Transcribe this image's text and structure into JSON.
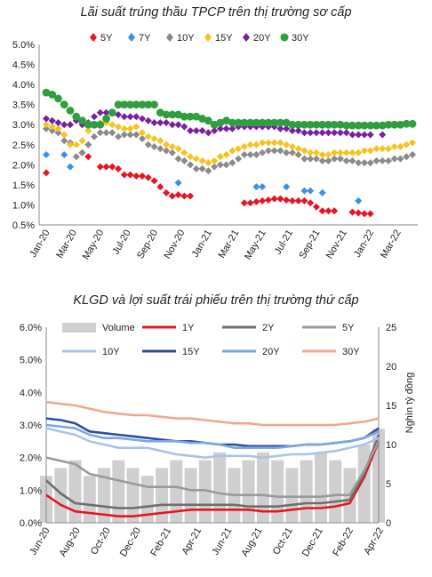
{
  "chart_data": [
    {
      "type": "scatter",
      "title": "Lãi suất trúng thầu TPCP trên thị trường sơ cấp",
      "xlabel": "",
      "ylabel": "",
      "ylim": [
        0.5,
        5.0
      ],
      "yticks": [
        "0.5%",
        "1.0%",
        "1.5%",
        "2.0%",
        "2.5%",
        "3.0%",
        "3.5%",
        "4.0%",
        "4.5%",
        "5.0%"
      ],
      "x_ticks": [
        "Jan-20",
        "Mar-20",
        "May-20",
        "Jul-20",
        "Sep-20",
        "Nov-20",
        "Jan-21",
        "Mar-21",
        "May-21",
        "Jul-21",
        "Sep-21",
        "Nov-21",
        "Jan-22",
        "Mar-22"
      ],
      "legend_position": "top",
      "grid": false,
      "series": [
        {
          "name": "5Y",
          "color": "#e8141f",
          "marker": "diamond",
          "x": [
            0,
            6,
            7,
            9,
            10,
            11,
            12,
            13,
            14,
            15,
            16,
            17,
            18,
            19,
            20,
            21,
            22,
            23,
            24,
            33,
            34,
            35,
            36,
            37,
            38,
            39,
            40,
            41,
            42,
            43,
            44,
            45,
            46,
            47,
            48,
            51,
            52,
            53,
            54
          ],
          "y": [
            1.8,
            2.3,
            2.2,
            1.95,
            1.95,
            1.95,
            1.9,
            1.75,
            1.75,
            1.72,
            1.72,
            1.68,
            1.6,
            1.45,
            1.3,
            1.22,
            1.25,
            1.22,
            1.22,
            1.05,
            1.05,
            1.08,
            1.1,
            1.12,
            1.15,
            1.15,
            1.12,
            1.1,
            1.1,
            1.1,
            1.05,
            0.95,
            0.85,
            0.85,
            0.85,
            0.82,
            0.8,
            0.78,
            0.78
          ]
        },
        {
          "name": "7Y",
          "color": "#3c8ee8",
          "marker": "diamond",
          "x": [
            0,
            3,
            4,
            22,
            35,
            36,
            40,
            43,
            44,
            46,
            52
          ],
          "y": [
            2.25,
            2.25,
            1.95,
            1.55,
            1.45,
            1.45,
            1.45,
            1.35,
            1.35,
            1.3,
            1.1
          ]
        },
        {
          "name": "10Y",
          "color": "#8a8a8a",
          "marker": "diamond",
          "x": [
            0,
            1,
            2,
            3,
            4,
            5,
            6,
            7,
            8,
            9,
            10,
            11,
            12,
            13,
            14,
            15,
            16,
            17,
            18,
            19,
            20,
            21,
            22,
            23,
            24,
            25,
            26,
            27,
            28,
            29,
            30,
            31,
            32,
            33,
            34,
            35,
            36,
            37,
            38,
            39,
            40,
            41,
            42,
            43,
            44,
            45,
            46,
            47,
            48,
            49,
            50,
            51,
            52,
            53,
            54,
            55,
            56,
            57,
            58,
            59,
            60,
            61
          ],
          "y": [
            2.9,
            2.85,
            2.8,
            2.6,
            2.55,
            2.2,
            2.3,
            2.5,
            2.7,
            2.8,
            2.8,
            2.8,
            2.7,
            2.75,
            2.75,
            2.75,
            2.65,
            2.5,
            2.45,
            2.4,
            2.35,
            2.3,
            2.15,
            2.1,
            2.0,
            1.9,
            1.9,
            1.85,
            1.95,
            2.0,
            2.0,
            2.05,
            2.15,
            2.25,
            2.25,
            2.25,
            2.3,
            2.35,
            2.35,
            2.35,
            2.3,
            2.3,
            2.25,
            2.15,
            2.15,
            2.15,
            2.1,
            2.1,
            2.15,
            2.15,
            2.1,
            2.1,
            2.05,
            2.05,
            2.05,
            2.1,
            2.1,
            2.1,
            2.15,
            2.15,
            2.2,
            2.25
          ]
        },
        {
          "name": "15Y",
          "color": "#f7c21e",
          "marker": "diamond",
          "x": [
            0,
            1,
            2,
            3,
            4,
            5,
            6,
            7,
            8,
            9,
            10,
            11,
            12,
            13,
            14,
            15,
            16,
            17,
            18,
            19,
            20,
            21,
            22,
            23,
            24,
            25,
            26,
            27,
            28,
            29,
            30,
            31,
            32,
            33,
            34,
            35,
            36,
            37,
            38,
            39,
            40,
            41,
            42,
            43,
            44,
            45,
            46,
            47,
            48,
            49,
            50,
            51,
            52,
            53,
            54,
            55,
            56,
            57,
            58,
            59,
            60,
            61
          ],
          "y": [
            3.0,
            2.95,
            2.9,
            2.75,
            2.5,
            2.5,
            2.6,
            2.85,
            3.0,
            3.05,
            3.05,
            3.0,
            2.95,
            2.9,
            2.9,
            2.95,
            2.8,
            2.7,
            2.65,
            2.6,
            2.5,
            2.45,
            2.4,
            2.3,
            2.2,
            2.15,
            2.1,
            2.05,
            2.1,
            2.2,
            2.25,
            2.35,
            2.4,
            2.45,
            2.5,
            2.5,
            2.55,
            2.55,
            2.55,
            2.55,
            2.5,
            2.45,
            2.4,
            2.35,
            2.3,
            2.3,
            2.25,
            2.25,
            2.3,
            2.3,
            2.3,
            2.3,
            2.3,
            2.35,
            2.35,
            2.4,
            2.4,
            2.4,
            2.45,
            2.45,
            2.5,
            2.55
          ]
        },
        {
          "name": "20Y",
          "color": "#7b1fa2",
          "marker": "diamond",
          "x": [
            0,
            1,
            2,
            3,
            4,
            5,
            6,
            7,
            8,
            9,
            10,
            11,
            12,
            13,
            14,
            15,
            16,
            17,
            18,
            19,
            20,
            21,
            22,
            23,
            24,
            25,
            26,
            27,
            28,
            29,
            30,
            31,
            32,
            33,
            34,
            35,
            36,
            37,
            38,
            39,
            40,
            41,
            42,
            43,
            44,
            45,
            46,
            47,
            48,
            49,
            50,
            51,
            52,
            53,
            54,
            56
          ],
          "y": [
            3.15,
            3.1,
            3.05,
            3.0,
            3.0,
            3.1,
            3.0,
            3.05,
            3.2,
            3.3,
            3.3,
            3.3,
            3.25,
            3.2,
            3.2,
            3.2,
            3.15,
            3.1,
            3.05,
            3.05,
            3.05,
            3.0,
            3.0,
            2.95,
            2.85,
            2.85,
            2.85,
            2.8,
            2.85,
            2.9,
            2.9,
            2.9,
            2.95,
            2.95,
            2.95,
            2.95,
            2.95,
            2.95,
            2.95,
            2.9,
            2.9,
            2.85,
            2.85,
            2.8,
            2.8,
            2.8,
            2.8,
            2.8,
            2.8,
            2.8,
            2.8,
            2.75,
            2.75,
            2.75,
            2.75,
            2.75
          ]
        },
        {
          "name": "30Y",
          "color": "#2e9e3e",
          "marker": "circle",
          "x": [
            0,
            1,
            2,
            3,
            4,
            5,
            6,
            7,
            8,
            9,
            10,
            11,
            12,
            13,
            14,
            15,
            16,
            17,
            18,
            19,
            20,
            21,
            22,
            23,
            24,
            25,
            26,
            27,
            28,
            29,
            30,
            31,
            32,
            33,
            34,
            35,
            36,
            37,
            38,
            39,
            40,
            41,
            42,
            43,
            44,
            45,
            46,
            47,
            48,
            49,
            50,
            51,
            52,
            53,
            54,
            55,
            56,
            57,
            58,
            59,
            60,
            61
          ],
          "y": [
            3.8,
            3.75,
            3.65,
            3.5,
            3.35,
            3.2,
            3.1,
            3.0,
            3.0,
            3.0,
            3.15,
            3.3,
            3.5,
            3.5,
            3.5,
            3.5,
            3.5,
            3.5,
            3.5,
            3.3,
            3.25,
            3.25,
            3.25,
            3.2,
            3.2,
            3.2,
            3.15,
            3.1,
            3.0,
            3.05,
            3.1,
            3.05,
            3.05,
            3.05,
            3.05,
            3.05,
            3.05,
            3.05,
            3.05,
            3.05,
            3.05,
            3.0,
            3.0,
            3.0,
            3.0,
            3.0,
            3.0,
            3.0,
            3.0,
            3.0,
            2.98,
            2.98,
            2.98,
            2.98,
            2.98,
            2.98,
            2.98,
            3.0,
            3.0,
            3.0,
            3.02,
            3.02
          ]
        }
      ]
    },
    {
      "type": "line",
      "title": "KLGD và lợi suất trái phiếu trên thị trường thứ cấp",
      "xlabel": "",
      "ylabel": "",
      "y2label": "Nghìn tỷ đồng",
      "ylim": [
        0.0,
        6.0
      ],
      "y2lim": [
        0,
        25
      ],
      "yticks": [
        "0.0%",
        "1.0%",
        "2.0%",
        "3.0%",
        "4.0%",
        "5.0%",
        "6.0%"
      ],
      "y2ticks": [
        "0",
        "5",
        "10",
        "15",
        "20",
        "25"
      ],
      "x_ticks": [
        "Jun-20",
        "Aug-20",
        "Oct-20",
        "Dec-20",
        "Feb-21",
        "Apr-21",
        "Jun-21",
        "Aug-21",
        "Oct-21",
        "Dec-21",
        "Feb-22",
        "Apr-22"
      ],
      "legend_position": "top",
      "grid": false,
      "volume": {
        "name": "Volume",
        "color": "#cfcfcf",
        "x": [
          0,
          1,
          2,
          3,
          4,
          5,
          6,
          7,
          8,
          9,
          10,
          11,
          12,
          13,
          14,
          15,
          16,
          17,
          18,
          19,
          20,
          21,
          22,
          23
        ],
        "y": [
          6,
          7,
          8,
          6,
          7,
          8,
          7,
          6,
          7,
          8,
          7,
          8,
          9,
          7,
          8,
          9,
          8,
          7,
          8,
          9,
          8,
          7,
          10,
          12
        ]
      },
      "series": [
        {
          "name": "1Y",
          "color": "#e8141f",
          "x": [
            0,
            1,
            2,
            3,
            4,
            5,
            6,
            7,
            8,
            9,
            10,
            11,
            12,
            13,
            14,
            15,
            16,
            17,
            18,
            19,
            20,
            21,
            22,
            23
          ],
          "y": [
            0.85,
            0.55,
            0.35,
            0.3,
            0.25,
            0.2,
            0.2,
            0.25,
            0.3,
            0.35,
            0.4,
            0.4,
            0.4,
            0.4,
            0.4,
            0.35,
            0.35,
            0.4,
            0.45,
            0.45,
            0.5,
            0.6,
            1.4,
            2.5
          ]
        },
        {
          "name": "2Y",
          "color": "#6e6e6e",
          "x": [
            0,
            1,
            2,
            3,
            4,
            5,
            6,
            7,
            8,
            9,
            10,
            11,
            12,
            13,
            14,
            15,
            16,
            17,
            18,
            19,
            20,
            21,
            22,
            23
          ],
          "y": [
            1.3,
            0.9,
            0.6,
            0.55,
            0.5,
            0.45,
            0.45,
            0.5,
            0.55,
            0.55,
            0.55,
            0.55,
            0.55,
            0.55,
            0.5,
            0.5,
            0.5,
            0.55,
            0.6,
            0.6,
            0.65,
            0.7,
            1.5,
            2.7
          ]
        },
        {
          "name": "5Y",
          "color": "#9a9a9a",
          "x": [
            0,
            1,
            2,
            3,
            4,
            5,
            6,
            7,
            8,
            9,
            10,
            11,
            12,
            13,
            14,
            15,
            16,
            17,
            18,
            19,
            20,
            21,
            22,
            23
          ],
          "y": [
            2.0,
            1.9,
            1.8,
            1.5,
            1.4,
            1.3,
            1.2,
            1.1,
            1.1,
            1.1,
            1.0,
            1.0,
            0.9,
            0.85,
            0.85,
            0.85,
            0.8,
            0.8,
            0.8,
            0.8,
            0.85,
            0.85,
            1.6,
            2.5
          ]
        },
        {
          "name": "10Y",
          "color": "#a7c4e6",
          "x": [
            0,
            1,
            2,
            3,
            4,
            5,
            6,
            7,
            8,
            9,
            10,
            11,
            12,
            13,
            14,
            15,
            16,
            17,
            18,
            19,
            20,
            21,
            22,
            23
          ],
          "y": [
            2.9,
            2.8,
            2.7,
            2.5,
            2.4,
            2.3,
            2.3,
            2.3,
            2.2,
            2.1,
            2.05,
            2.0,
            2.05,
            2.05,
            2.05,
            2.0,
            2.05,
            2.1,
            2.1,
            2.15,
            2.2,
            2.3,
            2.4,
            2.6
          ]
        },
        {
          "name": "15Y",
          "color": "#2f4da0",
          "x": [
            0,
            1,
            2,
            3,
            4,
            5,
            6,
            7,
            8,
            9,
            10,
            11,
            12,
            13,
            14,
            15,
            16,
            17,
            18,
            19,
            20,
            21,
            22,
            23
          ],
          "y": [
            3.2,
            3.15,
            3.05,
            2.8,
            2.75,
            2.7,
            2.65,
            2.6,
            2.55,
            2.5,
            2.5,
            2.45,
            2.4,
            2.4,
            2.35,
            2.35,
            2.35,
            2.35,
            2.4,
            2.4,
            2.45,
            2.5,
            2.6,
            2.9
          ]
        },
        {
          "name": "20Y",
          "color": "#7aa8e0",
          "x": [
            0,
            1,
            2,
            3,
            4,
            5,
            6,
            7,
            8,
            9,
            10,
            11,
            12,
            13,
            14,
            15,
            16,
            17,
            18,
            19,
            20,
            21,
            22,
            23
          ],
          "y": [
            3.0,
            2.95,
            2.9,
            2.7,
            2.6,
            2.6,
            2.55,
            2.5,
            2.5,
            2.5,
            2.45,
            2.45,
            2.4,
            2.3,
            2.3,
            2.3,
            2.3,
            2.35,
            2.4,
            2.4,
            2.45,
            2.5,
            2.6,
            2.8
          ]
        },
        {
          "name": "30Y",
          "color": "#f3a68f",
          "x": [
            0,
            1,
            2,
            3,
            4,
            5,
            6,
            7,
            8,
            9,
            10,
            11,
            12,
            13,
            14,
            15,
            16,
            17,
            18,
            19,
            20,
            21,
            22,
            23
          ],
          "y": [
            3.7,
            3.65,
            3.6,
            3.5,
            3.4,
            3.35,
            3.3,
            3.3,
            3.25,
            3.2,
            3.2,
            3.15,
            3.1,
            3.05,
            3.05,
            3.0,
            3.0,
            3.0,
            3.0,
            3.0,
            3.0,
            3.05,
            3.1,
            3.2
          ]
        }
      ]
    }
  ]
}
